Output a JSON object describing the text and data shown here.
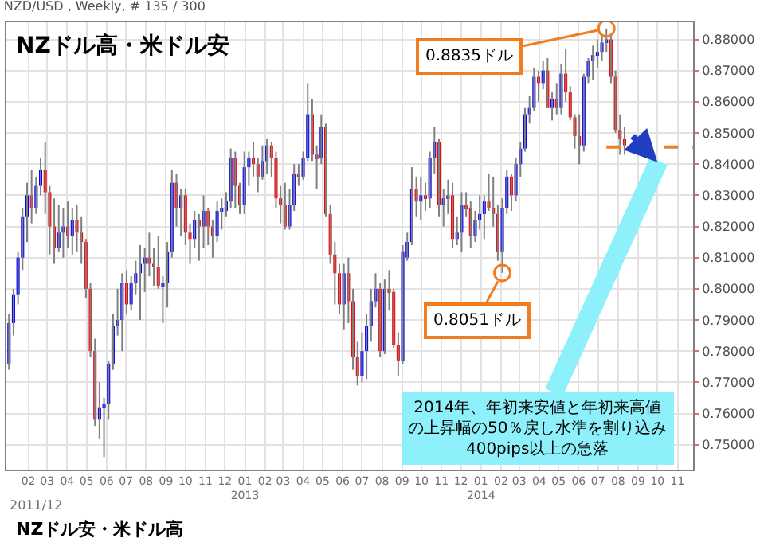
{
  "chart_data": {
    "type": "candlestick",
    "title": "NZD/USD , Weekly, # 135 / 300",
    "x": [
      "2012-01-02",
      "2012-01-09",
      "2012-01-16",
      "2012-01-23",
      "2012-01-30",
      "2012-02-06",
      "2012-02-13",
      "2012-02-20",
      "2012-02-27",
      "2012-03-05",
      "2012-03-12",
      "2012-03-19",
      "2012-03-26",
      "2012-04-02",
      "2012-04-09",
      "2012-04-16",
      "2012-04-23",
      "2012-04-30",
      "2012-05-07",
      "2012-05-14",
      "2012-05-21",
      "2012-05-28",
      "2012-06-04",
      "2012-06-11",
      "2012-06-18",
      "2012-06-25",
      "2012-07-02",
      "2012-07-09",
      "2012-07-16",
      "2012-07-23",
      "2012-07-30",
      "2012-08-06",
      "2012-08-13",
      "2012-08-20",
      "2012-08-27",
      "2012-09-03",
      "2012-09-10",
      "2012-09-17",
      "2012-09-24",
      "2012-10-01",
      "2012-10-08",
      "2012-10-15",
      "2012-10-22",
      "2012-10-29",
      "2012-11-05",
      "2012-11-12",
      "2012-11-19",
      "2012-11-26",
      "2012-12-03",
      "2012-12-10",
      "2012-12-17",
      "2012-12-24",
      "2012-12-31",
      "2013-01-07",
      "2013-01-14",
      "2013-01-21",
      "2013-01-28",
      "2013-02-04",
      "2013-02-11",
      "2013-02-18",
      "2013-02-25",
      "2013-03-04",
      "2013-03-11",
      "2013-03-18",
      "2013-03-25",
      "2013-04-01",
      "2013-04-08",
      "2013-04-15",
      "2013-04-22",
      "2013-04-29",
      "2013-05-06",
      "2013-05-13",
      "2013-05-20",
      "2013-05-27",
      "2013-06-03",
      "2013-06-10",
      "2013-06-17",
      "2013-06-24",
      "2013-07-01",
      "2013-07-08",
      "2013-07-15",
      "2013-07-22",
      "2013-07-29",
      "2013-08-05",
      "2013-08-12",
      "2013-08-19",
      "2013-08-26",
      "2013-09-02",
      "2013-09-09",
      "2013-09-16",
      "2013-09-23",
      "2013-09-30",
      "2013-10-07",
      "2013-10-14",
      "2013-10-21",
      "2013-10-28",
      "2013-11-04",
      "2013-11-11",
      "2013-11-18",
      "2013-11-25",
      "2013-12-02",
      "2013-12-09",
      "2013-12-16",
      "2013-12-23",
      "2013-12-30",
      "2014-01-06",
      "2014-01-13",
      "2014-01-20",
      "2014-01-27",
      "2014-02-03",
      "2014-02-10",
      "2014-02-17",
      "2014-02-24",
      "2014-03-03",
      "2014-03-10",
      "2014-03-17",
      "2014-03-24",
      "2014-03-31",
      "2014-04-07",
      "2014-04-14",
      "2014-04-21",
      "2014-04-28",
      "2014-05-05",
      "2014-05-12",
      "2014-05-19",
      "2014-05-26",
      "2014-06-02",
      "2014-06-09",
      "2014-06-16",
      "2014-06-23",
      "2014-06-30",
      "2014-07-07",
      "2014-07-14",
      "2014-07-21",
      "2014-07-28",
      "2014-08-04",
      "2014-08-11"
    ],
    "ohlc": [
      [
        0.776,
        0.792,
        0.774,
        0.789
      ],
      [
        0.789,
        0.8,
        0.785,
        0.798
      ],
      [
        0.798,
        0.812,
        0.795,
        0.81
      ],
      [
        0.81,
        0.826,
        0.806,
        0.823
      ],
      [
        0.823,
        0.834,
        0.815,
        0.83
      ],
      [
        0.83,
        0.838,
        0.821,
        0.826
      ],
      [
        0.826,
        0.836,
        0.824,
        0.833
      ],
      [
        0.833,
        0.842,
        0.83,
        0.838
      ],
      [
        0.838,
        0.847,
        0.824,
        0.831
      ],
      [
        0.831,
        0.833,
        0.811,
        0.82
      ],
      [
        0.82,
        0.829,
        0.808,
        0.813
      ],
      [
        0.813,
        0.827,
        0.812,
        0.818
      ],
      [
        0.818,
        0.826,
        0.81,
        0.82
      ],
      [
        0.82,
        0.828,
        0.813,
        0.817
      ],
      [
        0.817,
        0.826,
        0.811,
        0.822
      ],
      [
        0.822,
        0.827,
        0.812,
        0.818
      ],
      [
        0.818,
        0.823,
        0.808,
        0.815
      ],
      [
        0.815,
        0.816,
        0.797,
        0.8
      ],
      [
        0.8,
        0.802,
        0.778,
        0.78
      ],
      [
        0.78,
        0.784,
        0.756,
        0.758
      ],
      [
        0.758,
        0.77,
        0.752,
        0.762
      ],
      [
        0.762,
        0.765,
        0.746,
        0.763
      ],
      [
        0.763,
        0.777,
        0.758,
        0.776
      ],
      [
        0.776,
        0.792,
        0.774,
        0.788
      ],
      [
        0.788,
        0.8,
        0.785,
        0.79
      ],
      [
        0.79,
        0.805,
        0.78,
        0.802
      ],
      [
        0.802,
        0.806,
        0.792,
        0.795
      ],
      [
        0.795,
        0.804,
        0.793,
        0.802
      ],
      [
        0.802,
        0.809,
        0.798,
        0.805
      ],
      [
        0.805,
        0.814,
        0.79,
        0.808
      ],
      [
        0.808,
        0.813,
        0.799,
        0.81
      ],
      [
        0.81,
        0.818,
        0.804,
        0.808
      ],
      [
        0.808,
        0.813,
        0.801,
        0.807
      ],
      [
        0.807,
        0.817,
        0.8,
        0.801
      ],
      [
        0.801,
        0.804,
        0.789,
        0.802
      ],
      [
        0.802,
        0.815,
        0.794,
        0.812
      ],
      [
        0.812,
        0.838,
        0.81,
        0.834
      ],
      [
        0.834,
        0.837,
        0.82,
        0.826
      ],
      [
        0.826,
        0.832,
        0.817,
        0.83
      ],
      [
        0.83,
        0.832,
        0.814,
        0.818
      ],
      [
        0.818,
        0.821,
        0.808,
        0.816
      ],
      [
        0.816,
        0.825,
        0.813,
        0.822
      ],
      [
        0.822,
        0.824,
        0.809,
        0.82
      ],
      [
        0.82,
        0.83,
        0.813,
        0.825
      ],
      [
        0.825,
        0.826,
        0.814,
        0.82
      ],
      [
        0.82,
        0.822,
        0.81,
        0.817
      ],
      [
        0.817,
        0.828,
        0.815,
        0.825
      ],
      [
        0.825,
        0.829,
        0.819,
        0.826
      ],
      [
        0.825,
        0.831,
        0.823,
        0.828
      ],
      [
        0.828,
        0.845,
        0.826,
        0.842
      ],
      [
        0.842,
        0.844,
        0.826,
        0.833
      ],
      [
        0.833,
        0.834,
        0.824,
        0.827
      ],
      [
        0.827,
        0.844,
        0.824,
        0.839
      ],
      [
        0.839,
        0.844,
        0.833,
        0.842
      ],
      [
        0.842,
        0.847,
        0.836,
        0.84
      ],
      [
        0.84,
        0.842,
        0.831,
        0.836
      ],
      [
        0.836,
        0.846,
        0.835,
        0.841
      ],
      [
        0.841,
        0.848,
        0.837,
        0.846
      ],
      [
        0.846,
        0.847,
        0.836,
        0.842
      ],
      [
        0.842,
        0.844,
        0.826,
        0.829
      ],
      [
        0.829,
        0.833,
        0.821,
        0.827
      ],
      [
        0.827,
        0.834,
        0.819,
        0.82
      ],
      [
        0.82,
        0.832,
        0.819,
        0.827
      ],
      [
        0.827,
        0.84,
        0.825,
        0.837
      ],
      [
        0.837,
        0.84,
        0.833,
        0.836
      ],
      [
        0.836,
        0.844,
        0.835,
        0.842
      ],
      [
        0.842,
        0.866,
        0.841,
        0.856
      ],
      [
        0.856,
        0.861,
        0.841,
        0.843
      ],
      [
        0.843,
        0.846,
        0.832,
        0.842
      ],
      [
        0.842,
        0.856,
        0.84,
        0.852
      ],
      [
        0.852,
        0.853,
        0.823,
        0.824
      ],
      [
        0.824,
        0.827,
        0.808,
        0.811
      ],
      [
        0.811,
        0.815,
        0.795,
        0.805
      ],
      [
        0.805,
        0.808,
        0.792,
        0.795
      ],
      [
        0.795,
        0.808,
        0.787,
        0.805
      ],
      [
        0.805,
        0.81,
        0.789,
        0.796
      ],
      [
        0.796,
        0.8,
        0.774,
        0.778
      ],
      [
        0.778,
        0.783,
        0.769,
        0.772
      ],
      [
        0.772,
        0.786,
        0.77,
        0.78
      ],
      [
        0.78,
        0.792,
        0.771,
        0.788
      ],
      [
        0.788,
        0.8,
        0.783,
        0.796
      ],
      [
        0.796,
        0.805,
        0.794,
        0.8
      ],
      [
        0.8,
        0.802,
        0.778,
        0.78
      ],
      [
        0.78,
        0.803,
        0.779,
        0.8
      ],
      [
        0.8,
        0.806,
        0.793,
        0.799
      ],
      [
        0.799,
        0.8,
        0.781,
        0.782
      ],
      [
        0.782,
        0.786,
        0.772,
        0.777
      ],
      [
        0.777,
        0.814,
        0.776,
        0.812
      ],
      [
        0.81,
        0.818,
        0.809,
        0.815
      ],
      [
        0.815,
        0.839,
        0.814,
        0.832
      ],
      [
        0.832,
        0.836,
        0.823,
        0.828
      ],
      [
        0.828,
        0.836,
        0.822,
        0.83
      ],
      [
        0.83,
        0.834,
        0.825,
        0.829
      ],
      [
        0.829,
        0.844,
        0.826,
        0.842
      ],
      [
        0.842,
        0.852,
        0.837,
        0.847
      ],
      [
        0.847,
        0.848,
        0.823,
        0.827
      ],
      [
        0.827,
        0.832,
        0.82,
        0.829
      ],
      [
        0.829,
        0.835,
        0.824,
        0.83
      ],
      [
        0.83,
        0.834,
        0.813,
        0.816
      ],
      [
        0.816,
        0.823,
        0.814,
        0.818
      ],
      [
        0.818,
        0.831,
        0.812,
        0.827
      ],
      [
        0.827,
        0.831,
        0.823,
        0.826
      ],
      [
        0.826,
        0.828,
        0.813,
        0.817
      ],
      [
        0.817,
        0.825,
        0.815,
        0.822
      ],
      [
        0.822,
        0.83,
        0.819,
        0.824
      ],
      [
        0.824,
        0.83,
        0.816,
        0.828
      ],
      [
        0.828,
        0.837,
        0.825,
        0.826
      ],
      [
        0.826,
        0.836,
        0.82,
        0.824
      ],
      [
        0.824,
        0.827,
        0.809,
        0.812
      ],
      [
        0.812,
        0.829,
        0.8051,
        0.826
      ],
      [
        0.826,
        0.838,
        0.824,
        0.836
      ],
      [
        0.836,
        0.837,
        0.825,
        0.83
      ],
      [
        0.83,
        0.842,
        0.828,
        0.84
      ],
      [
        0.84,
        0.847,
        0.836,
        0.845
      ],
      [
        0.845,
        0.858,
        0.844,
        0.856
      ],
      [
        0.856,
        0.862,
        0.853,
        0.858
      ],
      [
        0.858,
        0.871,
        0.857,
        0.868
      ],
      [
        0.868,
        0.87,
        0.86,
        0.866
      ],
      [
        0.866,
        0.873,
        0.864,
        0.87
      ],
      [
        0.87,
        0.874,
        0.858,
        0.858
      ],
      [
        0.858,
        0.863,
        0.854,
        0.861
      ],
      [
        0.861,
        0.866,
        0.856,
        0.858
      ],
      [
        0.858,
        0.872,
        0.856,
        0.869
      ],
      [
        0.869,
        0.877,
        0.86,
        0.863
      ],
      [
        0.863,
        0.865,
        0.854,
        0.855
      ],
      [
        0.855,
        0.856,
        0.845,
        0.849
      ],
      [
        0.849,
        0.856,
        0.84,
        0.846
      ],
      [
        0.846,
        0.869,
        0.844,
        0.868
      ],
      [
        0.868,
        0.874,
        0.866,
        0.873
      ],
      [
        0.873,
        0.878,
        0.867,
        0.875
      ],
      [
        0.875,
        0.88,
        0.871,
        0.876
      ],
      [
        0.876,
        0.881,
        0.873,
        0.879
      ],
      [
        0.879,
        0.8835,
        0.876,
        0.88
      ],
      [
        0.88,
        0.882,
        0.866,
        0.868
      ],
      [
        0.868,
        0.87,
        0.85,
        0.851
      ],
      [
        0.851,
        0.856,
        0.843,
        0.848
      ],
      [
        0.848,
        0.852,
        0.843,
        0.846
      ]
    ],
    "xlim": [
      "2011-12-29",
      "2014-11-25"
    ],
    "xticks": [
      {
        "value": "2012-02-01",
        "label": "02"
      },
      {
        "value": "2012-03-01",
        "label": "03"
      },
      {
        "value": "2012-04-01",
        "label": "04"
      },
      {
        "value": "2012-05-01",
        "label": "05"
      },
      {
        "value": "2012-06-01",
        "label": "06"
      },
      {
        "value": "2012-07-01",
        "label": "07"
      },
      {
        "value": "2012-08-01",
        "label": "08"
      },
      {
        "value": "2012-09-01",
        "label": "09"
      },
      {
        "value": "2012-10-01",
        "label": "10"
      },
      {
        "value": "2012-11-01",
        "label": "11"
      },
      {
        "value": "2012-12-01",
        "label": "12"
      },
      {
        "value": "2013-01-01",
        "label": "01\n2013"
      },
      {
        "value": "2013-02-01",
        "label": "02"
      },
      {
        "value": "2013-03-01",
        "label": "03"
      },
      {
        "value": "2013-04-01",
        "label": "04"
      },
      {
        "value": "2013-05-01",
        "label": "05"
      },
      {
        "value": "2013-06-01",
        "label": "06"
      },
      {
        "value": "2013-07-01",
        "label": "07"
      },
      {
        "value": "2013-08-01",
        "label": "08"
      },
      {
        "value": "2013-09-01",
        "label": "09"
      },
      {
        "value": "2013-10-01",
        "label": "10"
      },
      {
        "value": "2013-11-01",
        "label": "11"
      },
      {
        "value": "2013-12-01",
        "label": "12"
      },
      {
        "value": "2014-01-01",
        "label": "01\n2014"
      },
      {
        "value": "2014-02-01",
        "label": "02"
      },
      {
        "value": "2014-03-01",
        "label": "03"
      },
      {
        "value": "2014-04-01",
        "label": "04"
      },
      {
        "value": "2014-05-01",
        "label": "05"
      },
      {
        "value": "2014-06-01",
        "label": "06"
      },
      {
        "value": "2014-07-01",
        "label": "07"
      },
      {
        "value": "2014-08-01",
        "label": "08"
      },
      {
        "value": "2014-09-01",
        "label": "09"
      },
      {
        "value": "2014-10-01",
        "label": "10"
      },
      {
        "value": "2014-11-01",
        "label": "11"
      }
    ],
    "ylim": [
      0.742,
      0.8855
    ],
    "yticks": [
      {
        "value": 0.75,
        "label": "0.75000"
      },
      {
        "value": 0.76,
        "label": "0.76000"
      },
      {
        "value": 0.77,
        "label": "0.77000"
      },
      {
        "value": 0.78,
        "label": "0.78000"
      },
      {
        "value": 0.79,
        "label": "0.79000"
      },
      {
        "value": 0.8,
        "label": "0.80000"
      },
      {
        "value": 0.81,
        "label": "0.81000"
      },
      {
        "value": 0.82,
        "label": "0.82000"
      },
      {
        "value": 0.83,
        "label": "0.83000"
      },
      {
        "value": 0.84,
        "label": "0.84000"
      },
      {
        "value": 0.85,
        "label": "0.85000"
      },
      {
        "value": 0.86,
        "label": "0.86000"
      },
      {
        "value": 0.87,
        "label": "0.87000"
      },
      {
        "value": 0.88,
        "label": "0.88000"
      }
    ],
    "grid": true,
    "ref_lines": [
      {
        "axis": "y",
        "value": 0.8455,
        "color": "#f07d22",
        "line_style": "dashed"
      }
    ],
    "annotations": [
      "NZドル高・米ドル安",
      "NZドル安・米ドル高",
      "2011/12",
      {
        "text": "0.8835ドル",
        "x": "2014-07-14",
        "y": 0.8835
      },
      {
        "text": "0.8051ドル",
        "x": "2014-02-03",
        "y": 0.8051
      },
      "2014年、年初来安値と年初来高値の上昇幅の50％戻し水準を割り込み400pips以上の急落"
    ]
  }
}
